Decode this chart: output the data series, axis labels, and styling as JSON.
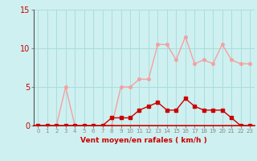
{
  "x": [
    0,
    1,
    2,
    3,
    4,
    5,
    6,
    7,
    8,
    9,
    10,
    11,
    12,
    13,
    14,
    15,
    16,
    17,
    18,
    19,
    20,
    21,
    22,
    23
  ],
  "rafales": [
    0,
    0,
    0,
    5,
    0,
    0,
    0,
    0,
    0,
    5,
    5,
    6,
    6,
    10.5,
    10.5,
    8.5,
    11.5,
    8,
    8.5,
    8,
    10.5,
    8.5,
    8,
    8
  ],
  "moyen": [
    0,
    0,
    0,
    0,
    0,
    0,
    0,
    0,
    1,
    1,
    1,
    2,
    2.5,
    3,
    2,
    2,
    3.5,
    2.5,
    2,
    2,
    2,
    1,
    0,
    0
  ],
  "ylim": [
    0,
    15
  ],
  "yticks": [
    0,
    5,
    10,
    15
  ],
  "xtick_labels": [
    "0",
    "1",
    "2",
    "3",
    "4",
    "5",
    "6",
    "7",
    "8",
    "9",
    "10",
    "11",
    "12",
    "13",
    "14",
    "15",
    "16",
    "17",
    "18",
    "19",
    "20",
    "21",
    "22",
    "23"
  ],
  "xlabel": "Vent moyen/en rafales ( km/h )",
  "color_rafales": "#f5a0a0",
  "color_moyen": "#cc0000",
  "bg_color": "#cef0f0",
  "grid_color": "#aadddd",
  "label_color": "#cc0000",
  "marker_size": 2.5,
  "line_width": 1.0
}
